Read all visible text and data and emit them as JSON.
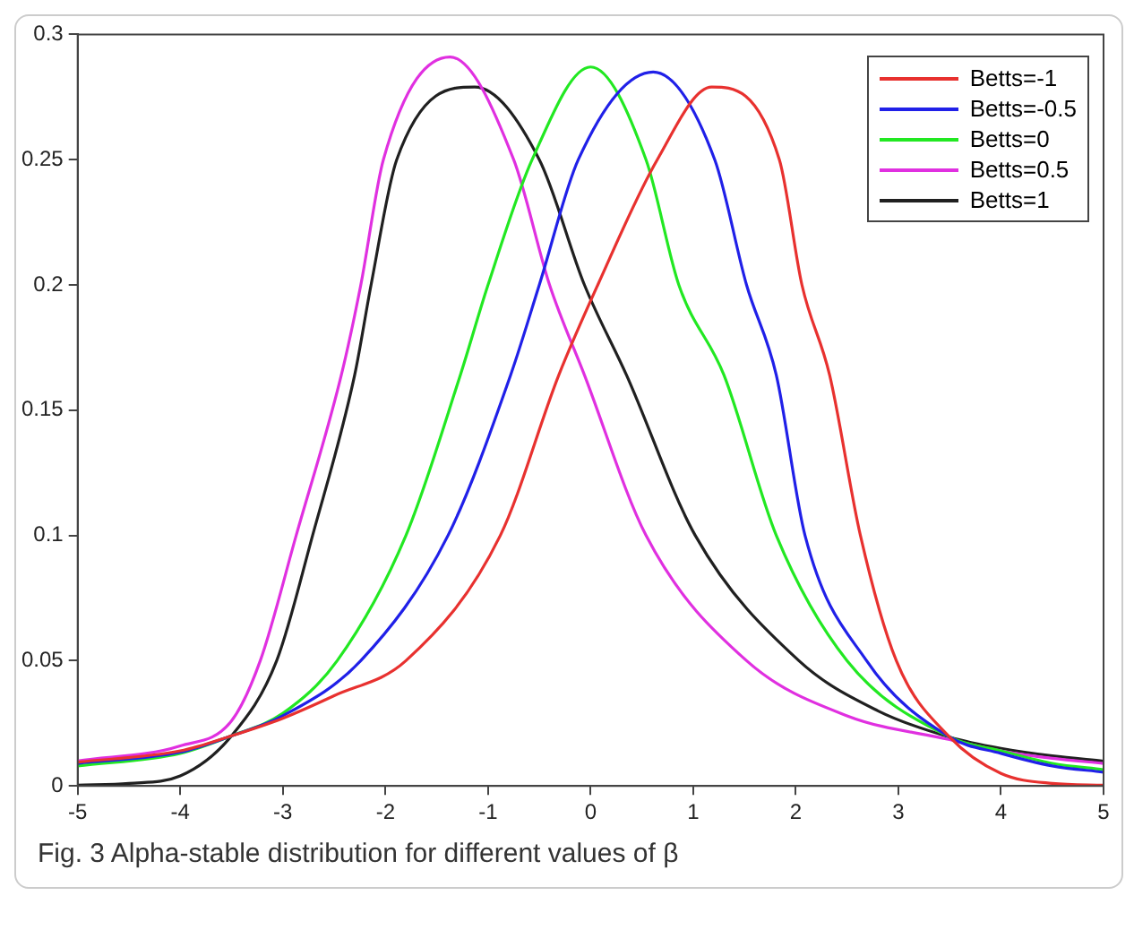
{
  "chart_data": {
    "type": "line",
    "annotations": [
      "Fig. 3 Alpha-stable distribution for different values of β"
    ],
    "xlim": [
      -5,
      5
    ],
    "xticks": [
      -5,
      -4,
      -3,
      -2,
      -1,
      0,
      1,
      2,
      3,
      4,
      5
    ],
    "ylim": [
      0,
      0.3
    ],
    "yticks": [
      0,
      0.05,
      0.1,
      0.15,
      0.2,
      0.25,
      0.3
    ],
    "grid": false,
    "legend": "top right",
    "marker": "none",
    "line_style": "solid",
    "series": [
      {
        "name": "Betts=-1",
        "color": "#e8312f",
        "x": [
          -5,
          -4,
          -3.5,
          -3,
          -2.5,
          -1.8,
          -0.88,
          -0.31,
          0.07,
          0.65,
          1.18,
          1.84,
          2.06,
          2.33,
          2.63,
          2.98,
          3.5,
          4,
          4.5,
          5
        ],
        "values": [
          0.0095,
          0.014,
          0.02,
          0.027,
          0.036,
          0.05,
          0.1,
          0.164,
          0.2,
          0.25,
          0.279,
          0.25,
          0.2,
          0.164,
          0.1,
          0.05,
          0.0195,
          0.005,
          0.001,
          0.0003
        ]
      },
      {
        "name": "Betts=-0.5",
        "color": "#2020e8",
        "x": [
          -5,
          -4,
          -3.5,
          -3,
          -2.24,
          -1.39,
          -0.78,
          -0.5,
          -0.12,
          0.61,
          1.21,
          1.52,
          1.81,
          2.09,
          2.69,
          3.5,
          4,
          4.5,
          5
        ],
        "values": [
          0.009,
          0.0135,
          0.02,
          0.028,
          0.05,
          0.1,
          0.164,
          0.2,
          0.25,
          0.285,
          0.25,
          0.2,
          0.164,
          0.1,
          0.05,
          0.0195,
          0.013,
          0.008,
          0.0055
        ]
      },
      {
        "name": "Betts=0",
        "color": "#22e822",
        "x": [
          -5,
          -4,
          -3.5,
          -3,
          -2.47,
          -1.8,
          -1.27,
          -1,
          -0.57,
          0,
          0.54,
          0.86,
          1.3,
          1.81,
          2.5,
          3.5,
          4,
          4.5,
          5
        ],
        "values": [
          0.008,
          0.013,
          0.02,
          0.029,
          0.05,
          0.1,
          0.164,
          0.2,
          0.25,
          0.287,
          0.25,
          0.2,
          0.164,
          0.1,
          0.05,
          0.0195,
          0.014,
          0.009,
          0.0065
        ]
      },
      {
        "name": "Betts=0.5",
        "color": "#e030e0",
        "x": [
          -5,
          -4,
          -3.5,
          -3.22,
          -2.87,
          -2.43,
          -2.24,
          -2.02,
          -1.37,
          -0.75,
          -0.4,
          -0.06,
          0.54,
          1.52,
          2.5,
          3.5,
          4,
          4.5,
          5
        ],
        "values": [
          0.01,
          0.016,
          0.026,
          0.05,
          0.1,
          0.164,
          0.2,
          0.25,
          0.291,
          0.25,
          0.2,
          0.164,
          0.1,
          0.05,
          0.028,
          0.0185,
          0.014,
          0.011,
          0.009
        ]
      },
      {
        "name": "Betts=1",
        "color": "#202020",
        "x": [
          -5,
          -4.5,
          -4,
          -3.5,
          -3.06,
          -2.71,
          -2.3,
          -2.14,
          -1.89,
          -1.13,
          -0.5,
          -0.06,
          0.35,
          1.02,
          2.03,
          2.8,
          3.5,
          4,
          4.5,
          5
        ],
        "values": [
          0.0003,
          0.001,
          0.004,
          0.02,
          0.05,
          0.1,
          0.164,
          0.2,
          0.25,
          0.279,
          0.25,
          0.2,
          0.164,
          0.1,
          0.05,
          0.03,
          0.0195,
          0.015,
          0.012,
          0.0099
        ]
      }
    ]
  }
}
